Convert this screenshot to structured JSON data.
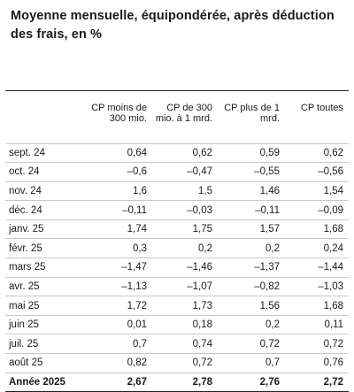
{
  "title": "Moyenne mensuelle, équipondérée, après déduction des frais, en %",
  "table": {
    "columns": [
      "",
      "CP moins de 300 mio.",
      "CP de 300 mio. à 1 mrd.",
      "CP plus de 1 mrd.",
      "CP toutes"
    ],
    "rows": [
      [
        "sept. 24",
        "0,64",
        "0,62",
        "0,59",
        "0,62"
      ],
      [
        "oct. 24",
        "–0,6",
        "–0,47",
        "–0,55",
        "–0,56"
      ],
      [
        "nov. 24",
        "1,6",
        "1,5",
        "1,46",
        "1,54"
      ],
      [
        "déc. 24",
        "–0,11",
        "–0,03",
        "–0,11",
        "–0,09"
      ],
      [
        "janv. 25",
        "1,74",
        "1,75",
        "1,57",
        "1,68"
      ],
      [
        "févr. 25",
        "0,3",
        "0,2",
        "0,2",
        "0,24"
      ],
      [
        "mars 25",
        "–1,47",
        "–1,46",
        "–1,37",
        "–1,44"
      ],
      [
        "avr. 25",
        "–1,13",
        "–1,07",
        "–0,82",
        "–1,03"
      ],
      [
        "mai 25",
        "1,72",
        "1,73",
        "1,56",
        "1,68"
      ],
      [
        "juin 25",
        "0,01",
        "0,18",
        "0,2",
        "0,11"
      ],
      [
        "juil. 25",
        "0,7",
        "0,74",
        "0,72",
        "0,72"
      ],
      [
        "août 25",
        "0,82",
        "0,72",
        "0,7",
        "0,76"
      ]
    ],
    "total": [
      "Année 2025",
      "2,67",
      "2,78",
      "2,76",
      "2,72"
    ]
  }
}
